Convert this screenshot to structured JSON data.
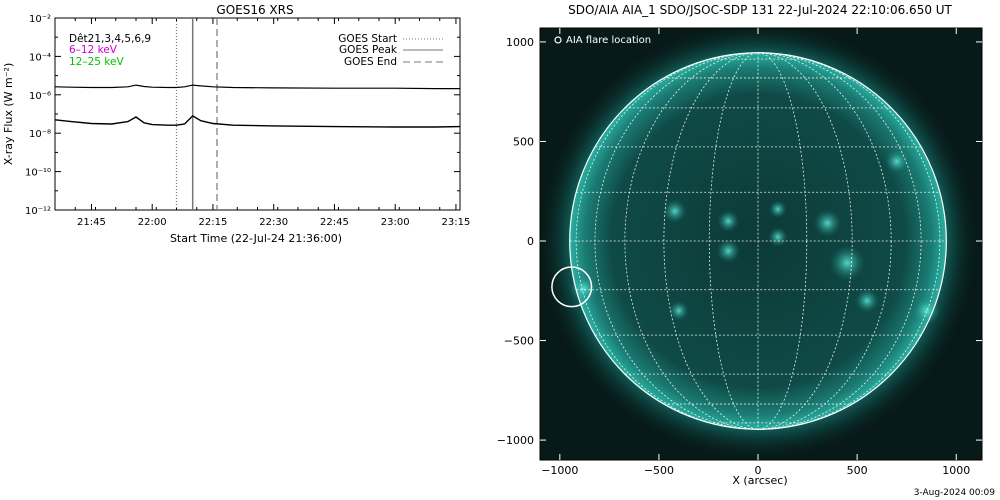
{
  "left_panel": {
    "title": "GOES16 XRS",
    "ylabel": "X-ray Flux (W m⁻²)",
    "xlabel": "Start Time (22-Jul-24 21:36:00)",
    "detectors_label": "Dêt21,3,4,5,6,9",
    "band_low_label": "6–12 keV",
    "band_high_label": "12–25 keV",
    "legend": [
      "GOES Start",
      "GOES Peak",
      "GOES End"
    ]
  },
  "right_panel": {
    "title": "SDO/AIA AIA_1 SDO/JSOC-SDP 131 22-Jul-2024 22:10:06.650 UT",
    "xlabel": "X (arcsec)",
    "flare_legend": "AIA flare location"
  },
  "footer": {
    "timestamp": "3-Aug-2024 00:09"
  },
  "colors": {
    "band_low": "#d000d0",
    "band_high": "#00c000",
    "sun_base": "#0a3838",
    "sun_bright": "#3ee0d0",
    "background": "#ffffff"
  },
  "chart_data": [
    {
      "type": "line",
      "title": "GOES16 XRS",
      "xlabel": "Start Time (22-Jul-24 21:36:00)",
      "ylabel": "X-ray Flux (W m⁻²)",
      "yscale": "log",
      "x_ticks": [
        "21:45",
        "22:00",
        "22:15",
        "22:30",
        "22:45",
        "23:00",
        "23:15"
      ],
      "y_ticks": [
        "10⁻¹²",
        "10⁻¹⁰",
        "10⁻⁸",
        "10⁻⁶",
        "10⁻⁴",
        "10⁻²"
      ],
      "xlim": [
        "21:36",
        "23:16"
      ],
      "ylim": [
        1e-12,
        0.01
      ],
      "grid": false,
      "legend_position": "top-right",
      "markers": [
        {
          "name": "GOES Start",
          "time": "22:06",
          "style": "dotted"
        },
        {
          "name": "GOES Peak",
          "time": "22:10",
          "style": "solid"
        },
        {
          "name": "GOES End",
          "time": "22:16",
          "style": "dashed"
        }
      ],
      "series": [
        {
          "x": [
            "21:36",
            "21:40",
            "21:45",
            "21:50",
            "21:54",
            "21:56",
            "21:58",
            "22:00",
            "22:04",
            "22:06",
            "22:08",
            "22:10",
            "22:12",
            "22:15",
            "22:20",
            "22:30",
            "22:45",
            "23:00",
            "23:10",
            "23:16"
          ],
          "values": [
            2.6e-06,
            2.5e-06,
            2.4e-06,
            2.4e-06,
            2.6e-06,
            3.2e-06,
            2.7e-06,
            2.5e-06,
            2.4e-06,
            2.4e-06,
            2.6e-06,
            3.2e-06,
            2.9e-06,
            2.6e-06,
            2.4e-06,
            2.3e-06,
            2.2e-06,
            2.2e-06,
            2.1e-06,
            2.1e-06
          ]
        },
        {
          "x": [
            "21:36",
            "21:40",
            "21:45",
            "21:50",
            "21:54",
            "21:56",
            "21:58",
            "22:00",
            "22:04",
            "22:06",
            "22:08",
            "22:10",
            "22:12",
            "22:15",
            "22:20",
            "22:30",
            "22:45",
            "23:00",
            "23:10",
            "23:16"
          ],
          "values": [
            5e-08,
            4e-08,
            3.2e-08,
            3e-08,
            4e-08,
            7e-08,
            3.5e-08,
            2.8e-08,
            2.6e-08,
            2.6e-08,
            3e-08,
            8e-08,
            4.5e-08,
            3.2e-08,
            2.6e-08,
            2.4e-08,
            2.2e-08,
            2.1e-08,
            2.1e-08,
            2.2e-08
          ]
        }
      ]
    },
    {
      "type": "scatter",
      "title": "SDO/AIA AIA_1 SDO/JSOC-SDP 131 22-Jul-2024 22:10:06.650 UT",
      "xlabel": "X (arcsec)",
      "ylabel": "",
      "x_ticks": [
        -1000,
        -500,
        0,
        500,
        1000
      ],
      "y_ticks": [
        1000,
        500,
        0,
        -500,
        -1000
      ],
      "xlim": [
        -1100,
        1130
      ],
      "ylim": [
        -1100,
        1070
      ],
      "grid": true,
      "solar_radius_arcsec": 950,
      "flare_location": {
        "x": -940,
        "y": -230,
        "radius_arcsec": 100
      },
      "legend_position": "top-left"
    }
  ]
}
